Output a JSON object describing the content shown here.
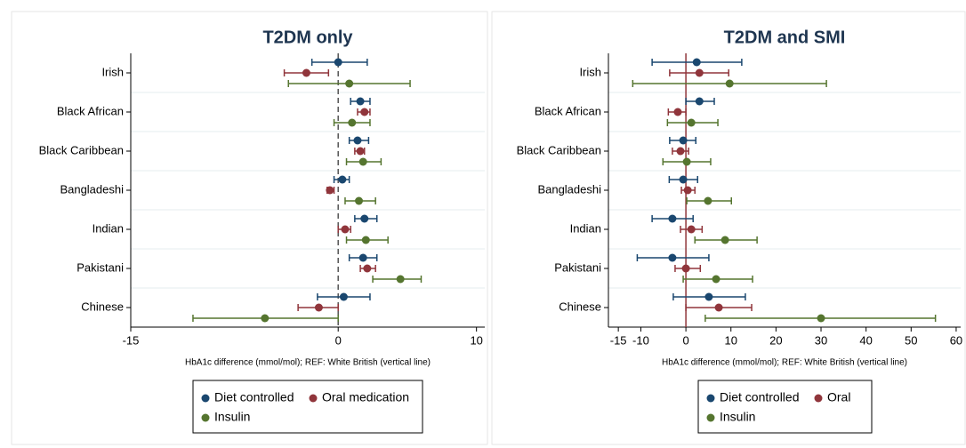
{
  "chart_data": [
    {
      "type": "forest",
      "title": "T2DM only",
      "categories": [
        "Irish",
        "Black African",
        "Black Caribbean",
        "Bangladeshi",
        "Indian",
        "Pakistani",
        "Chinese"
      ],
      "xlabel": "HbA1c difference (mmol/mol); REF: White British (vertical line)",
      "xlim": [
        -15,
        10.6
      ],
      "xticks": [
        -15,
        0,
        10
      ],
      "refline": 0,
      "refline_style": "dashed",
      "refline_color": "#555555",
      "series": [
        {
          "name": "Diet controlled",
          "color": "#1a476f",
          "values": [
            0.0,
            1.6,
            1.4,
            0.3,
            1.9,
            1.8,
            0.4
          ],
          "lower": [
            -1.9,
            0.9,
            0.8,
            -0.3,
            1.2,
            0.8,
            -1.5
          ],
          "upper": [
            2.1,
            2.3,
            2.2,
            0.8,
            2.8,
            2.8,
            2.3
          ]
        },
        {
          "name": "Oral medication",
          "color": "#90353b",
          "values": [
            -2.3,
            1.9,
            1.6,
            -0.6,
            0.5,
            2.1,
            -1.4
          ],
          "lower": [
            -3.9,
            1.4,
            1.2,
            -0.8,
            0.0,
            1.6,
            -2.9
          ],
          "upper": [
            -0.7,
            2.3,
            1.9,
            -0.3,
            0.9,
            2.7,
            0.0
          ]
        },
        {
          "name": "Insulin",
          "color": "#55752f",
          "values": [
            0.8,
            1.0,
            1.8,
            1.5,
            2.0,
            4.5,
            -5.3
          ],
          "lower": [
            -3.6,
            -0.3,
            0.6,
            0.5,
            0.6,
            2.5,
            -10.5
          ],
          "upper": [
            5.2,
            2.3,
            3.1,
            2.7,
            3.6,
            6.0,
            0.0
          ]
        }
      ]
    },
    {
      "type": "forest",
      "title": "T2DM and SMI",
      "categories": [
        "Irish",
        "Black African",
        "Black Caribbean",
        "Bangladeshi",
        "Indian",
        "Pakistani",
        "Chinese"
      ],
      "xlabel": "HbA1c difference (mmol/mol); REF: White British (vertical line)",
      "xlim": [
        -17.2,
        61
      ],
      "xticks": [
        -15,
        -10,
        0,
        10,
        20,
        30,
        40,
        50,
        60
      ],
      "refline": 0,
      "refline_style": "solid",
      "refline_color": "#90353b",
      "series": [
        {
          "name": "Diet controlled",
          "color": "#1a476f",
          "values": [
            2.4,
            3.0,
            -0.6,
            -0.6,
            -3.0,
            -3.0,
            5.1
          ],
          "lower": [
            -7.5,
            0.0,
            -3.6,
            -3.7,
            -7.5,
            -10.8,
            -2.8
          ],
          "upper": [
            12.4,
            6.3,
            2.2,
            2.6,
            1.6,
            5.1,
            13.2
          ]
        },
        {
          "name": "Oral",
          "color": "#90353b",
          "values": [
            3.0,
            -1.8,
            -1.2,
            0.4,
            1.2,
            0.0,
            7.3
          ],
          "lower": [
            -3.6,
            -3.9,
            -3.0,
            -1.0,
            -1.2,
            -2.4,
            0.0
          ],
          "upper": [
            9.5,
            0.0,
            0.6,
            2.0,
            3.6,
            3.2,
            14.6
          ]
        },
        {
          "name": "Insulin",
          "color": "#55752f",
          "values": [
            9.7,
            1.2,
            0.2,
            4.9,
            8.7,
            6.7,
            30.0
          ],
          "lower": [
            -11.8,
            -4.1,
            -5.1,
            0.2,
            2.0,
            -0.6,
            4.3
          ],
          "upper": [
            31.2,
            7.1,
            5.5,
            10.1,
            15.8,
            14.8,
            55.4
          ]
        }
      ]
    }
  ]
}
